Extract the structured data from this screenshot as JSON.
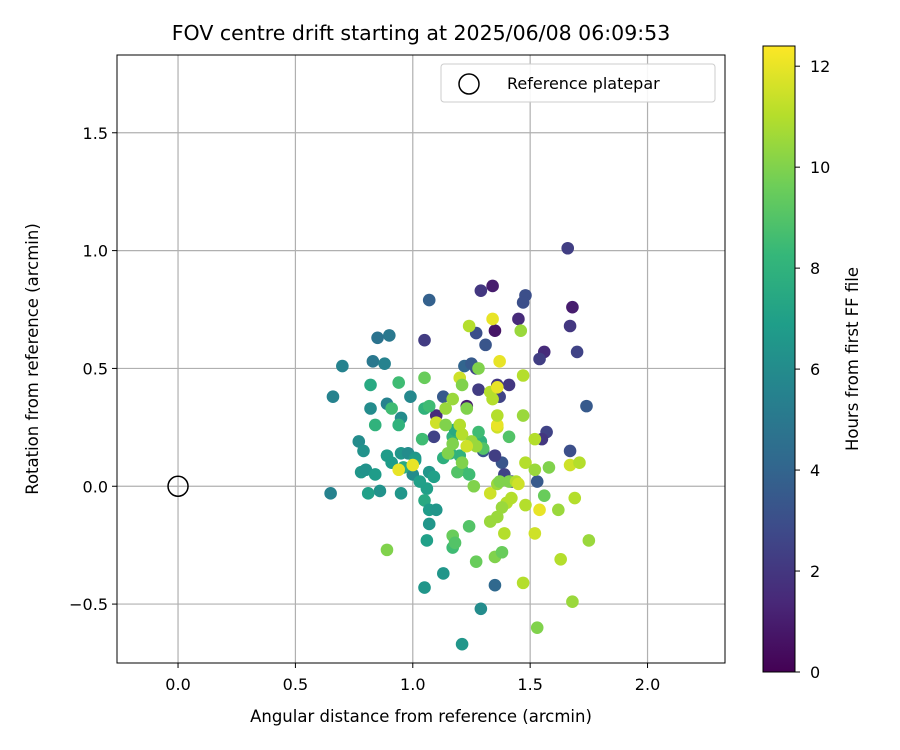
{
  "chart_data": {
    "type": "scatter",
    "title": "FOV centre drift starting at 2025/06/08 06:09:53",
    "xlabel": "Angular distance from reference (arcmin)",
    "ylabel": "Rotation from reference (arcmin)",
    "xlim": [
      -0.26,
      2.33
    ],
    "ylim": [
      -0.75,
      1.83
    ],
    "xticks": [
      0.0,
      0.5,
      1.0,
      1.5,
      2.0
    ],
    "xtick_labels": [
      "0.0",
      "0.5",
      "1.0",
      "1.5",
      "2.0"
    ],
    "yticks": [
      -0.5,
      0.0,
      0.5,
      1.0,
      1.5
    ],
    "ytick_labels": [
      "−0.5",
      "0.0",
      "0.5",
      "1.0",
      "1.5"
    ],
    "grid": true,
    "legend": {
      "placement": "upper right",
      "entries": [
        "Reference platepar"
      ]
    },
    "reference_point": {
      "x": 0.0,
      "y": 0.0,
      "label": "Reference platepar"
    },
    "colorbar": {
      "label": "Hours from first FF file",
      "colormap": "viridis",
      "range": [
        0,
        12.4
      ],
      "ticks": [
        0,
        2,
        4,
        6,
        8,
        10,
        12
      ],
      "tick_labels": [
        "0",
        "2",
        "4",
        "6",
        "8",
        "10",
        "12"
      ]
    },
    "series": [
      {
        "points": [
          {
            "x": 1.66,
            "y": 1.01,
            "c": 2.3
          },
          {
            "x": 1.48,
            "y": 0.81,
            "c": 3.0
          },
          {
            "x": 1.47,
            "y": 0.78,
            "c": 3.0
          },
          {
            "x": 1.34,
            "y": 0.85,
            "c": 1.0
          },
          {
            "x": 1.29,
            "y": 0.83,
            "c": 2.0
          },
          {
            "x": 1.68,
            "y": 0.76,
            "c": 1.0
          },
          {
            "x": 1.45,
            "y": 0.71,
            "c": 1.5
          },
          {
            "x": 1.67,
            "y": 0.68,
            "c": 2.0
          },
          {
            "x": 1.35,
            "y": 0.66,
            "c": 0.7
          },
          {
            "x": 1.27,
            "y": 0.65,
            "c": 3.0
          },
          {
            "x": 1.31,
            "y": 0.6,
            "c": 3.3
          },
          {
            "x": 1.05,
            "y": 0.62,
            "c": 2.2
          },
          {
            "x": 1.7,
            "y": 0.57,
            "c": 2.5
          },
          {
            "x": 1.56,
            "y": 0.57,
            "c": 1.5
          },
          {
            "x": 1.54,
            "y": 0.54,
            "c": 2.3
          },
          {
            "x": 1.22,
            "y": 0.51,
            "c": 4.0
          },
          {
            "x": 1.27,
            "y": 0.5,
            "c": 2.5
          },
          {
            "x": 1.41,
            "y": 0.43,
            "c": 2.0
          },
          {
            "x": 1.28,
            "y": 0.41,
            "c": 2.2
          },
          {
            "x": 1.37,
            "y": 0.38,
            "c": 2.5
          },
          {
            "x": 1.36,
            "y": 0.43,
            "c": 2.0
          },
          {
            "x": 1.74,
            "y": 0.34,
            "c": 3.5
          },
          {
            "x": 1.13,
            "y": 0.38,
            "c": 3.5
          },
          {
            "x": 1.1,
            "y": 0.3,
            "c": 1.5
          },
          {
            "x": 1.23,
            "y": 0.34,
            "c": 1.0
          },
          {
            "x": 1.57,
            "y": 0.23,
            "c": 2.5
          },
          {
            "x": 1.55,
            "y": 0.2,
            "c": 2.0
          },
          {
            "x": 1.67,
            "y": 0.15,
            "c": 3.0
          },
          {
            "x": 1.3,
            "y": 0.15,
            "c": 3.3
          },
          {
            "x": 1.38,
            "y": 0.1,
            "c": 3.3
          },
          {
            "x": 1.39,
            "y": 0.05,
            "c": 2.5
          },
          {
            "x": 1.53,
            "y": 0.02,
            "c": 3.5
          },
          {
            "x": 1.42,
            "y": 0.02,
            "c": 2.5
          },
          {
            "x": 1.35,
            "y": 0.13,
            "c": 2.3
          },
          {
            "x": 1.09,
            "y": 0.21,
            "c": 2.5
          },
          {
            "x": 1.25,
            "y": 0.52,
            "c": 3.5
          },
          {
            "x": 1.07,
            "y": 0.79,
            "c": 3.8
          },
          {
            "x": 1.35,
            "y": -0.42,
            "c": 4.2
          },
          {
            "x": 0.85,
            "y": 0.63,
            "c": 4.7
          },
          {
            "x": 0.9,
            "y": 0.64,
            "c": 5.0
          },
          {
            "x": 0.83,
            "y": 0.53,
            "c": 5.0
          },
          {
            "x": 0.7,
            "y": 0.51,
            "c": 5.5
          },
          {
            "x": 0.88,
            "y": 0.52,
            "c": 5.5
          },
          {
            "x": 0.66,
            "y": 0.38,
            "c": 5.5
          },
          {
            "x": 0.99,
            "y": 0.38,
            "c": 5.8
          },
          {
            "x": 0.89,
            "y": 0.35,
            "c": 5.5
          },
          {
            "x": 0.82,
            "y": 0.33,
            "c": 6.0
          },
          {
            "x": 0.95,
            "y": 0.29,
            "c": 6.0
          },
          {
            "x": 0.77,
            "y": 0.19,
            "c": 6.0
          },
          {
            "x": 0.79,
            "y": 0.15,
            "c": 6.3
          },
          {
            "x": 0.95,
            "y": 0.14,
            "c": 6.5
          },
          {
            "x": 0.98,
            "y": 0.14,
            "c": 6.0
          },
          {
            "x": 0.89,
            "y": 0.13,
            "c": 6.8
          },
          {
            "x": 1.01,
            "y": 0.12,
            "c": 6.5
          },
          {
            "x": 0.91,
            "y": 0.1,
            "c": 6.8
          },
          {
            "x": 0.78,
            "y": 0.06,
            "c": 6.5
          },
          {
            "x": 0.8,
            "y": 0.07,
            "c": 6.3
          },
          {
            "x": 0.84,
            "y": 0.05,
            "c": 6.8
          },
          {
            "x": 1.0,
            "y": 0.05,
            "c": 6.0
          },
          {
            "x": 1.07,
            "y": 0.06,
            "c": 6.5
          },
          {
            "x": 0.86,
            "y": -0.02,
            "c": 6.3
          },
          {
            "x": 0.81,
            "y": -0.03,
            "c": 7.0
          },
          {
            "x": 0.65,
            "y": -0.03,
            "c": 5.5
          },
          {
            "x": 0.95,
            "y": -0.03,
            "c": 6.5
          },
          {
            "x": 1.06,
            "y": -0.01,
            "c": 7.0
          },
          {
            "x": 1.03,
            "y": 0.02,
            "c": 7.0
          },
          {
            "x": 1.05,
            "y": -0.06,
            "c": 7.5
          },
          {
            "x": 1.07,
            "y": -0.1,
            "c": 6.8
          },
          {
            "x": 1.1,
            "y": -0.1,
            "c": 6.5
          },
          {
            "x": 1.07,
            "y": -0.16,
            "c": 6.5
          },
          {
            "x": 1.06,
            "y": -0.23,
            "c": 7.0
          },
          {
            "x": 1.13,
            "y": -0.37,
            "c": 6.5
          },
          {
            "x": 1.05,
            "y": -0.43,
            "c": 6.5
          },
          {
            "x": 1.29,
            "y": -0.52,
            "c": 6.0
          },
          {
            "x": 1.21,
            "y": -0.67,
            "c": 6.5
          },
          {
            "x": 1.09,
            "y": 0.04,
            "c": 7.0
          },
          {
            "x": 0.96,
            "y": 0.08,
            "c": 7.5
          },
          {
            "x": 1.01,
            "y": 0.11,
            "c": 6.8
          },
          {
            "x": 0.82,
            "y": 0.43,
            "c": 7.5
          },
          {
            "x": 0.94,
            "y": 0.44,
            "c": 8.5
          },
          {
            "x": 0.94,
            "y": 0.26,
            "c": 8.0
          },
          {
            "x": 0.84,
            "y": 0.26,
            "c": 8.0
          },
          {
            "x": 0.91,
            "y": 0.33,
            "c": 8.5
          },
          {
            "x": 1.05,
            "y": 0.33,
            "c": 8.0
          },
          {
            "x": 1.07,
            "y": 0.34,
            "c": 8.5
          },
          {
            "x": 1.04,
            "y": 0.2,
            "c": 8.5
          },
          {
            "x": 1.05,
            "y": 0.46,
            "c": 9.5
          },
          {
            "x": 1.16,
            "y": 0.14,
            "c": 8.0
          },
          {
            "x": 1.17,
            "y": 0.21,
            "c": 8.0
          },
          {
            "x": 1.2,
            "y": 0.13,
            "c": 8.0
          },
          {
            "x": 1.18,
            "y": 0.24,
            "c": 7.5
          },
          {
            "x": 1.13,
            "y": 0.12,
            "c": 7.8
          },
          {
            "x": 1.21,
            "y": 0.07,
            "c": 8.5
          },
          {
            "x": 1.19,
            "y": 0.06,
            "c": 9.0
          },
          {
            "x": 1.24,
            "y": 0.05,
            "c": 8.5
          },
          {
            "x": 1.29,
            "y": 0.19,
            "c": 8.0
          },
          {
            "x": 1.28,
            "y": 0.23,
            "c": 8.5
          },
          {
            "x": 1.3,
            "y": 0.16,
            "c": 9.0
          },
          {
            "x": 1.17,
            "y": -0.26,
            "c": 8.5
          },
          {
            "x": 1.17,
            "y": -0.21,
            "c": 9.5
          },
          {
            "x": 1.18,
            "y": -0.24,
            "c": 9.0
          },
          {
            "x": 1.24,
            "y": -0.17,
            "c": 9.0
          },
          {
            "x": 1.27,
            "y": -0.32,
            "c": 9.5
          },
          {
            "x": 0.89,
            "y": -0.27,
            "c": 10.0
          },
          {
            "x": 1.35,
            "y": -0.3,
            "c": 10.0
          },
          {
            "x": 1.38,
            "y": -0.28,
            "c": 9.5
          },
          {
            "x": 1.33,
            "y": -0.15,
            "c": 10.5
          },
          {
            "x": 1.36,
            "y": -0.13,
            "c": 10.5
          },
          {
            "x": 1.39,
            "y": -0.2,
            "c": 11.0
          },
          {
            "x": 1.47,
            "y": -0.41,
            "c": 11.0
          },
          {
            "x": 1.53,
            "y": -0.6,
            "c": 10.0
          },
          {
            "x": 1.68,
            "y": -0.49,
            "c": 10.5
          },
          {
            "x": 1.63,
            "y": -0.31,
            "c": 11.0
          },
          {
            "x": 1.75,
            "y": -0.23,
            "c": 10.5
          },
          {
            "x": 1.56,
            "y": -0.04,
            "c": 9.5
          },
          {
            "x": 1.62,
            "y": -0.1,
            "c": 10.5
          },
          {
            "x": 1.69,
            "y": -0.05,
            "c": 11.0
          },
          {
            "x": 1.54,
            "y": -0.1,
            "c": 12.0
          },
          {
            "x": 1.52,
            "y": -0.2,
            "c": 11.5
          },
          {
            "x": 1.48,
            "y": -0.08,
            "c": 11.0
          },
          {
            "x": 1.4,
            "y": -0.07,
            "c": 11.0
          },
          {
            "x": 1.38,
            "y": -0.09,
            "c": 10.5
          },
          {
            "x": 1.42,
            "y": -0.05,
            "c": 11.0
          },
          {
            "x": 1.33,
            "y": -0.03,
            "c": 11.5
          },
          {
            "x": 1.36,
            "y": 0.01,
            "c": 10.5
          },
          {
            "x": 1.41,
            "y": 0.02,
            "c": 10.0
          },
          {
            "x": 1.44,
            "y": 0.02,
            "c": 11.0
          },
          {
            "x": 1.48,
            "y": 0.1,
            "c": 11.0
          },
          {
            "x": 1.52,
            "y": 0.07,
            "c": 10.5
          },
          {
            "x": 1.58,
            "y": 0.08,
            "c": 10.0
          },
          {
            "x": 1.67,
            "y": 0.09,
            "c": 11.5
          },
          {
            "x": 1.71,
            "y": 0.1,
            "c": 11.0
          },
          {
            "x": 1.52,
            "y": 0.2,
            "c": 11.0
          },
          {
            "x": 1.47,
            "y": 0.3,
            "c": 10.5
          },
          {
            "x": 1.47,
            "y": 0.47,
            "c": 11.0
          },
          {
            "x": 1.41,
            "y": 0.21,
            "c": 9.0
          },
          {
            "x": 1.36,
            "y": 0.25,
            "c": 11.5
          },
          {
            "x": 1.36,
            "y": 0.26,
            "c": 12.0
          },
          {
            "x": 1.36,
            "y": 0.3,
            "c": 11.0
          },
          {
            "x": 1.34,
            "y": 0.37,
            "c": 11.0
          },
          {
            "x": 1.33,
            "y": 0.4,
            "c": 11.0
          },
          {
            "x": 1.36,
            "y": 0.42,
            "c": 12.0
          },
          {
            "x": 1.37,
            "y": 0.53,
            "c": 12.0
          },
          {
            "x": 1.34,
            "y": 0.71,
            "c": 12.0
          },
          {
            "x": 1.24,
            "y": 0.68,
            "c": 11.0
          },
          {
            "x": 1.46,
            "y": 0.66,
            "c": 10.5
          },
          {
            "x": 1.28,
            "y": 0.5,
            "c": 10.0
          },
          {
            "x": 1.2,
            "y": 0.46,
            "c": 11.5
          },
          {
            "x": 1.21,
            "y": 0.43,
            "c": 10.0
          },
          {
            "x": 1.17,
            "y": 0.37,
            "c": 10.5
          },
          {
            "x": 1.14,
            "y": 0.33,
            "c": 10.5
          },
          {
            "x": 1.23,
            "y": 0.33,
            "c": 10.0
          },
          {
            "x": 1.2,
            "y": 0.26,
            "c": 11.0
          },
          {
            "x": 1.1,
            "y": 0.27,
            "c": 11.5
          },
          {
            "x": 1.14,
            "y": 0.26,
            "c": 10.0
          },
          {
            "x": 1.21,
            "y": 0.22,
            "c": 11.0
          },
          {
            "x": 1.25,
            "y": 0.19,
            "c": 10.5
          },
          {
            "x": 1.27,
            "y": 0.17,
            "c": 10.5
          },
          {
            "x": 1.23,
            "y": 0.17,
            "c": 11.5
          },
          {
            "x": 1.17,
            "y": 0.18,
            "c": 10.0
          },
          {
            "x": 1.15,
            "y": 0.14,
            "c": 10.0
          },
          {
            "x": 1.21,
            "y": 0.1,
            "c": 10.0
          },
          {
            "x": 1.0,
            "y": 0.09,
            "c": 12.0
          },
          {
            "x": 0.94,
            "y": 0.07,
            "c": 12.0
          },
          {
            "x": 1.26,
            "y": 0.0,
            "c": 10.0
          },
          {
            "x": 1.37,
            "y": 0.02,
            "c": 10.0
          },
          {
            "x": 1.45,
            "y": 0.01,
            "c": 11.5
          }
        ]
      }
    ]
  }
}
